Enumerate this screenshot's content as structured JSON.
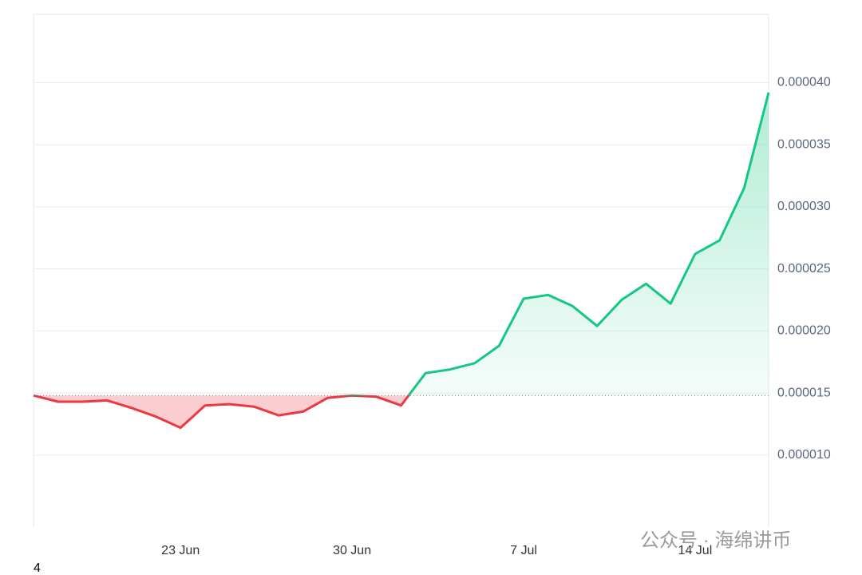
{
  "chart_data": {
    "type": "line",
    "categories": [
      null,
      null,
      null,
      null,
      null,
      null,
      "23 Jun",
      null,
      null,
      null,
      null,
      null,
      null,
      "30 Jun",
      null,
      null,
      null,
      null,
      null,
      null,
      "7 Jul",
      null,
      null,
      null,
      null,
      null,
      null,
      "14 Jul",
      null,
      null,
      null
    ],
    "values": [
      1.48e-05,
      1.43e-05,
      1.43e-05,
      1.44e-05,
      1.38e-05,
      1.31e-05,
      1.22e-05,
      1.4e-05,
      1.41e-05,
      1.39e-05,
      1.32e-05,
      1.35e-05,
      1.46e-05,
      1.48e-05,
      1.47e-05,
      1.4e-05,
      1.66e-05,
      1.69e-05,
      1.74e-05,
      1.88e-05,
      2.26e-05,
      2.29e-05,
      2.2e-05,
      2.04e-05,
      2.25e-05,
      2.38e-05,
      2.22e-05,
      2.62e-05,
      2.73e-05,
      3.15e-05,
      3.92e-05
    ],
    "up_color": "#16c784",
    "down_color": "#ea3943",
    "ylim": [
      4.2e-06,
      4.55e-05
    ],
    "yticks": [
      {
        "value": 1e-05,
        "label": "0.000010"
      },
      {
        "value": 1.5e-05,
        "label": "0.000015"
      },
      {
        "value": 2e-05,
        "label": "0.000020"
      },
      {
        "value": 2.5e-05,
        "label": "0.000025"
      },
      {
        "value": 3e-05,
        "label": "0.000030"
      },
      {
        "value": 3.5e-05,
        "label": "0.000035"
      },
      {
        "value": 4e-05,
        "label": "0.000040"
      }
    ],
    "grid": true,
    "watermark": "公众号 · 海绵讲币",
    "footnote": "4"
  }
}
